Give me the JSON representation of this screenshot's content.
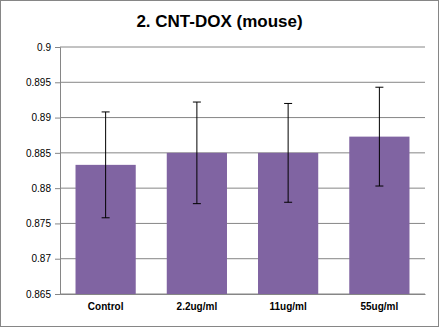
{
  "chart_data": {
    "type": "bar",
    "title": "2. CNT-DOX (mouse)",
    "categories": [
      "Control",
      "2.2ug/ml",
      "11ug/ml",
      "55ug/ml"
    ],
    "values": [
      0.8833,
      0.885,
      0.885,
      0.8873
    ],
    "errors": [
      0.0075,
      0.0072,
      0.007,
      0.007
    ],
    "color": "#8064a2",
    "ylim": [
      0.865,
      0.9
    ],
    "yticks": [
      0.865,
      0.87,
      0.875,
      0.88,
      0.885,
      0.89,
      0.895,
      0.9
    ],
    "grid": true
  }
}
